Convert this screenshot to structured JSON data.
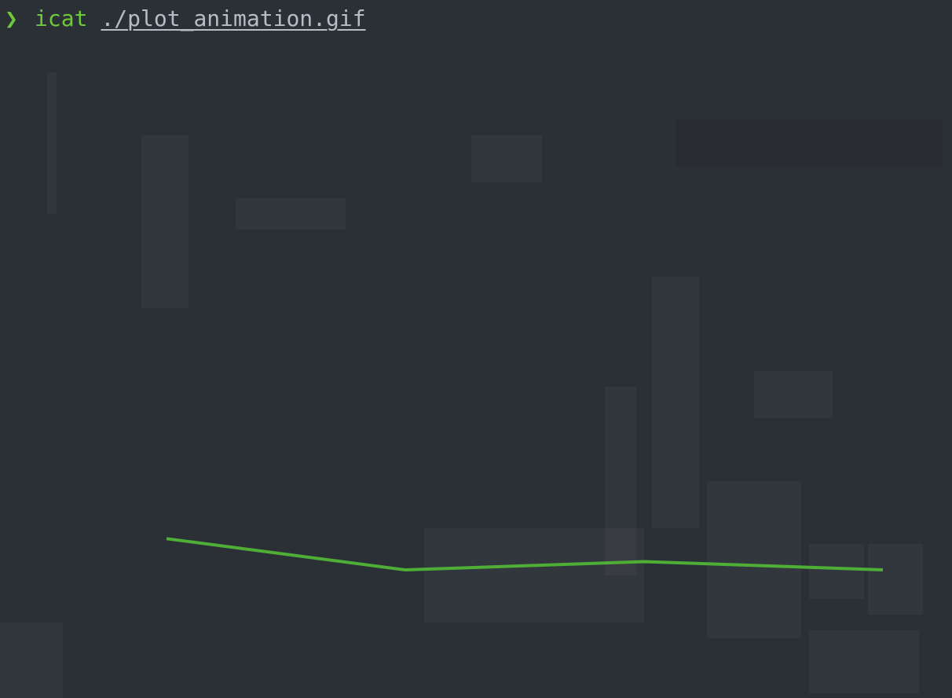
{
  "terminal": {
    "prompt_symbol": "❯",
    "command": "icat",
    "argument": "./plot_animation.gif"
  },
  "colors": {
    "background": "#2b2f36",
    "prompt_green": "#6fca3a",
    "path_gray": "#b8bcc4",
    "line_green": "#4fae35"
  },
  "chart_data": {
    "type": "line",
    "x": [
      0,
      1,
      2,
      3
    ],
    "series": [
      {
        "values": [
          0.97,
          0.78,
          0.83,
          0.78
        ]
      }
    ],
    "ylim": [
      0,
      4
    ],
    "grid": false
  }
}
